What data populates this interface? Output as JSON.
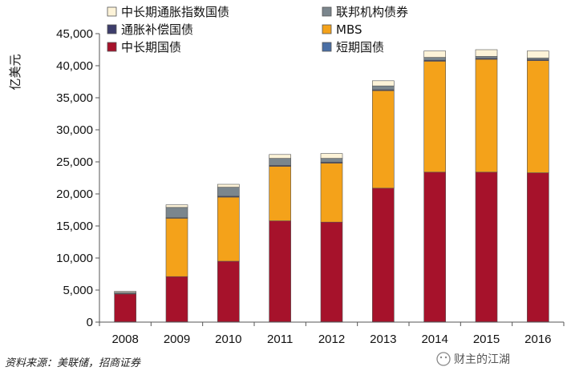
{
  "chart_data": {
    "type": "bar",
    "stacked": true,
    "ylabel": "亿美元",
    "ylim": [
      0,
      45000
    ],
    "yticks": [
      0,
      5000,
      10000,
      15000,
      20000,
      25000,
      30000,
      35000,
      40000,
      45000
    ],
    "ytick_labels": [
      "0",
      "5,000",
      "10,000",
      "15,000",
      "20,000",
      "25,000",
      "30,000",
      "35,000",
      "40,000",
      "45,000"
    ],
    "categories": [
      "2008",
      "2009",
      "2010",
      "2011",
      "2012",
      "2013",
      "2014",
      "2015",
      "2016"
    ],
    "grid": false,
    "legend_position": "top",
    "series": [
      {
        "name": "短期国债",
        "color": "#4a6fa5",
        "values": [
          50,
          50,
          50,
          50,
          50,
          50,
          50,
          50,
          50
        ]
      },
      {
        "name": "中长期国债",
        "color": "#a6122b",
        "values": [
          4350,
          7050,
          9450,
          15750,
          15550,
          20850,
          23350,
          23350,
          23250
        ]
      },
      {
        "name": "MBS",
        "color": "#f4a21a",
        "values": [
          0,
          9100,
          10000,
          8500,
          9200,
          15200,
          17300,
          17600,
          17500
        ]
      },
      {
        "name": "通胀补偿国债",
        "color": "#3d3d6b",
        "values": [
          50,
          100,
          150,
          150,
          150,
          150,
          150,
          150,
          150
        ]
      },
      {
        "name": "联邦机构债券",
        "color": "#7b868d",
        "values": [
          200,
          1600,
          1400,
          1100,
          600,
          600,
          450,
          300,
          250
        ]
      },
      {
        "name": "中长期通胀指数国债",
        "color": "#fdf3d8",
        "values": [
          150,
          400,
          450,
          600,
          750,
          800,
          1000,
          1050,
          1100
        ]
      }
    ]
  },
  "legend": [
    {
      "key": "tips",
      "label": "中长期通胀指数国债",
      "color": "#fdf3d8"
    },
    {
      "key": "agency",
      "label": "联邦机构债券",
      "color": "#7b868d"
    },
    {
      "key": "inflation",
      "label": "通胀补偿国债",
      "color": "#3d3d6b"
    },
    {
      "key": "mbs",
      "label": "MBS",
      "color": "#f4a21a"
    },
    {
      "key": "longterm",
      "label": "中长期国债",
      "color": "#a6122b"
    },
    {
      "key": "shortterm",
      "label": "短期国债",
      "color": "#4a6fa5"
    }
  ],
  "footer": {
    "source": "资料来源：美联储，招商证券",
    "watermark": "财主的江湖"
  }
}
